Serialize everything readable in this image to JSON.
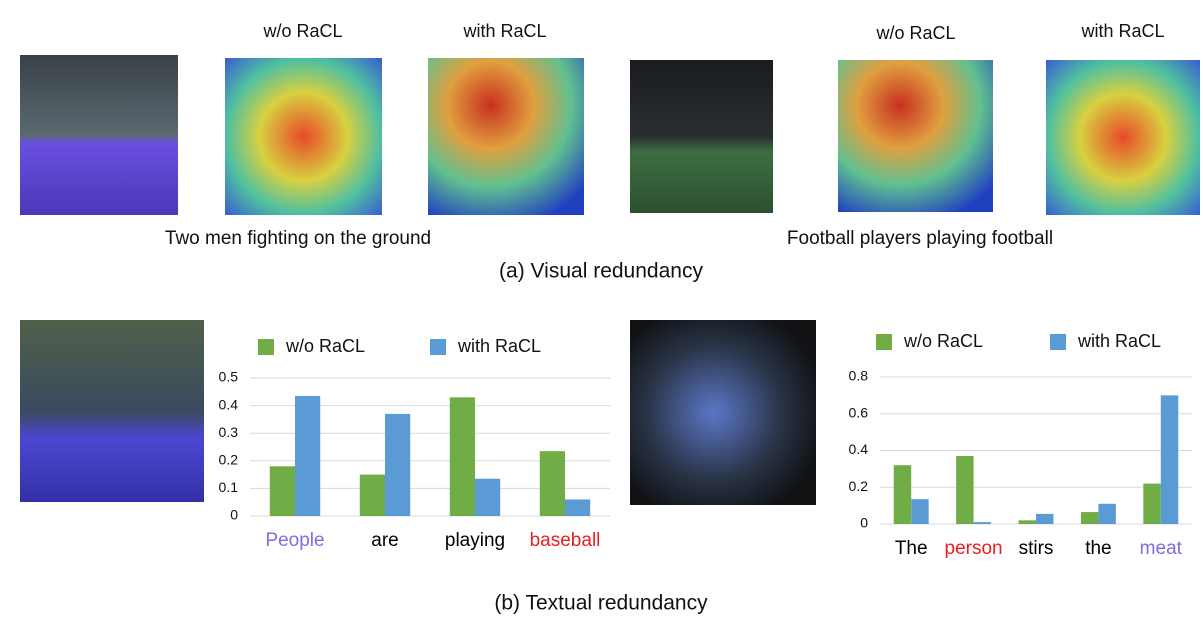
{
  "visual": {
    "examples": [
      {
        "labels": [
          "w/o  RaCL",
          "with  RaCL"
        ],
        "caption": "Two men fighting on the ground"
      },
      {
        "labels": [
          "w/o  RaCL",
          "with  RaCL"
        ],
        "caption": "Football players playing football"
      }
    ],
    "caption": "(a) Visual redundancy"
  },
  "textual_caption": "(b) Textual redundancy",
  "chart_data": [
    {
      "type": "bar",
      "categories": [
        "People",
        "are",
        "playing",
        "baseball"
      ],
      "category_colors": [
        "#7b6fe0",
        "#000000",
        "#000000",
        "#e8201e"
      ],
      "series": [
        {
          "name": "w/o  RaCL",
          "color": "#70ad47",
          "values": [
            0.18,
            0.15,
            0.43,
            0.235
          ]
        },
        {
          "name": "with  RaCL",
          "color": "#5b9bd5",
          "values": [
            0.435,
            0.37,
            0.135,
            0.06
          ]
        }
      ],
      "ylim": [
        0,
        0.5
      ],
      "yticks": [
        0,
        0.1,
        0.2,
        0.3,
        0.4,
        0.5
      ],
      "grid": true
    },
    {
      "type": "bar",
      "categories": [
        "The",
        "person",
        "stirs",
        "the",
        "meat"
      ],
      "category_colors": [
        "#000000",
        "#e8201e",
        "#000000",
        "#000000",
        "#7b6fe0"
      ],
      "series": [
        {
          "name": "w/o  RaCL",
          "color": "#70ad47",
          "values": [
            0.32,
            0.37,
            0.02,
            0.065,
            0.22
          ]
        },
        {
          "name": "with  RaCL",
          "color": "#5b9bd5",
          "values": [
            0.135,
            0.01,
            0.055,
            0.11,
            0.7
          ]
        }
      ],
      "ylim": [
        0,
        0.8
      ],
      "yticks": [
        0,
        0.2,
        0.4,
        0.6,
        0.8
      ],
      "grid": true
    }
  ]
}
